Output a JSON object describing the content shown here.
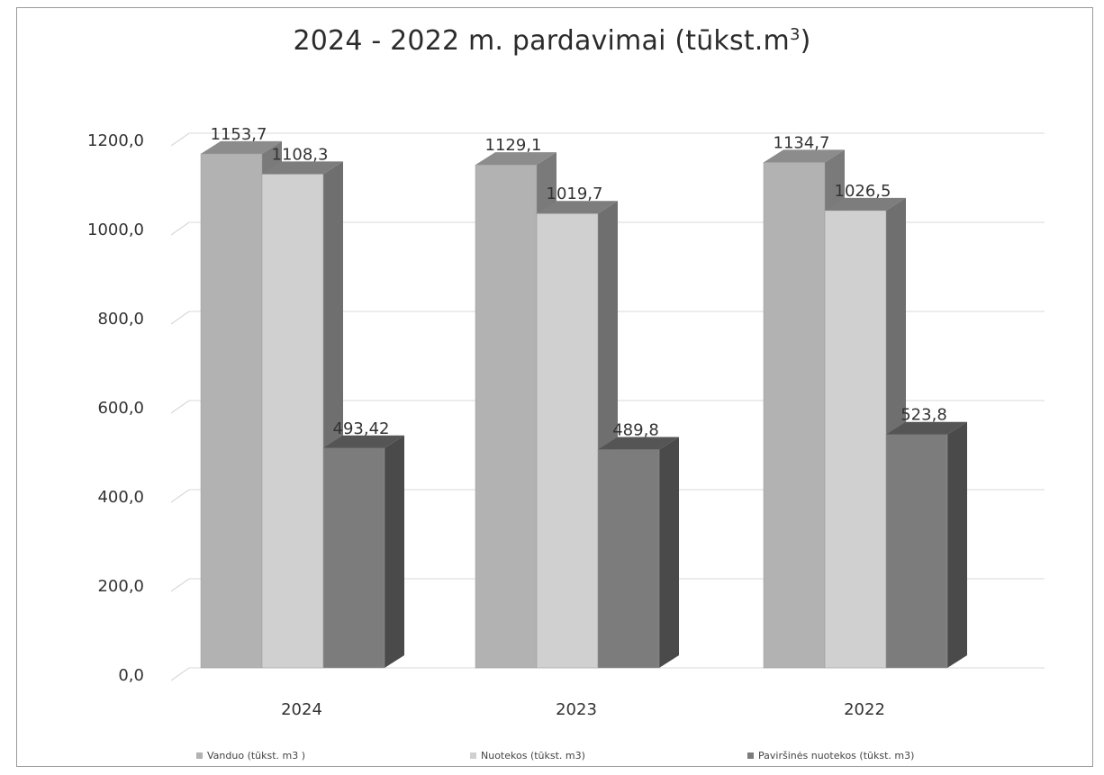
{
  "chart_data": {
    "type": "bar",
    "title": {
      "main": "2024 - 2022 m.  pardavimai (tūkst.m",
      "superscript": "3",
      "close": ")"
    },
    "categories": [
      "2024",
      "2023",
      "2022"
    ],
    "series": [
      {
        "name": "Vanduo (tūkst. m3 )",
        "values": [
          1153.7,
          1129.1,
          1134.7
        ],
        "labels": [
          "1153,7",
          "1129,1",
          "1134,7"
        ],
        "colors": {
          "front": "#b2b2b2",
          "top": "#8c8c8c",
          "side": "#7a7a7a"
        }
      },
      {
        "name": "Nuotekos (tūkst. m3)",
        "values": [
          1108.3,
          1019.7,
          1026.5
        ],
        "labels": [
          "1108,3",
          "1019,7",
          "1026,5"
        ],
        "colors": {
          "front": "#d0d0d0",
          "top": "#7d7d7d",
          "side": "#6f6f6f"
        }
      },
      {
        "name": "Paviršinės nuotekos (tūkst. m3)",
        "values": [
          493.42,
          489.8,
          523.8
        ],
        "labels": [
          "493,42",
          "489,8",
          "523,8"
        ],
        "colors": {
          "front": "#7c7c7c",
          "top": "#555555",
          "side": "#4a4a4a"
        }
      }
    ],
    "yaxis": {
      "ticks": [
        0,
        200,
        400,
        600,
        800,
        1000,
        1200
      ],
      "tick_labels": [
        "0,0",
        "200,0",
        "400,0",
        "600,0",
        "800,0",
        "1000,0",
        "1200,0"
      ],
      "ylim": [
        0,
        1200
      ]
    },
    "xlabel": "",
    "ylabel": "",
    "grid": true,
    "legend_position": "bottom",
    "style": "3d-column"
  }
}
